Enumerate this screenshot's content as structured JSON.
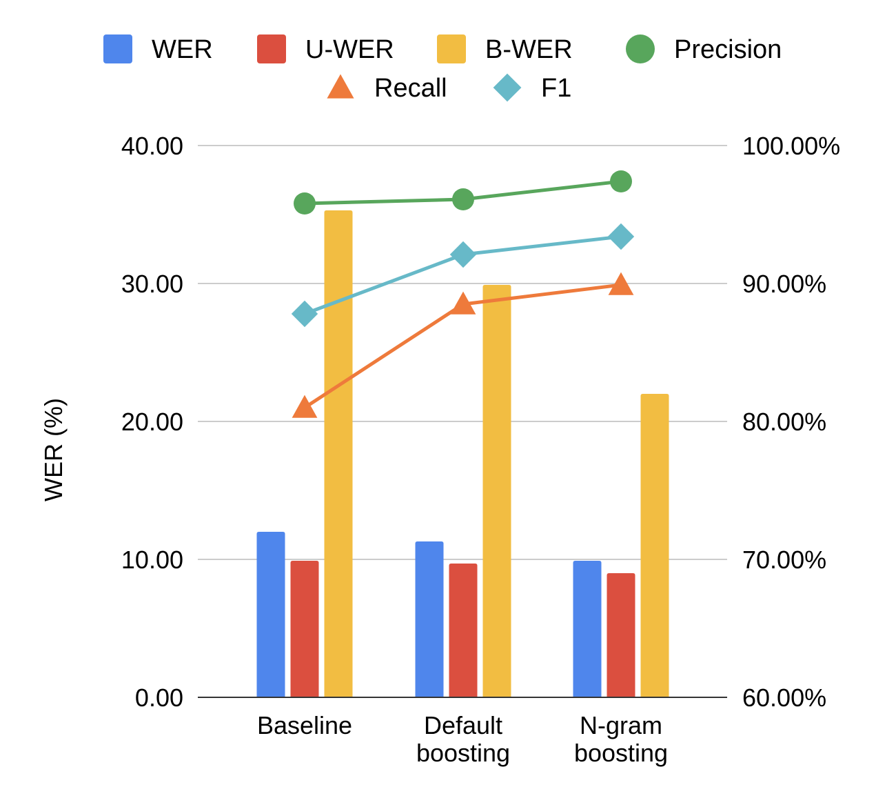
{
  "chart_data": {
    "type": "bar",
    "categories": [
      [
        "Baseline"
      ],
      [
        "Default",
        "boosting"
      ],
      [
        "N-gram",
        "boosting"
      ]
    ],
    "ylabel": "WER (%)",
    "y_left": {
      "ticks": [
        "0.00",
        "10.00",
        "20.00",
        "30.00",
        "40.00"
      ],
      "range": [
        0,
        40
      ]
    },
    "y_right": {
      "ticks": [
        "60.00%",
        "70.00%",
        "80.00%",
        "90.00%",
        "100.00%"
      ],
      "range": [
        60,
        100
      ]
    },
    "grid": true,
    "legend_position": "top",
    "bar_series": [
      {
        "name": "WER",
        "color": "#4f86ec",
        "values": [
          12.0,
          11.3,
          9.9
        ]
      },
      {
        "name": "U-WER",
        "color": "#db4f3f",
        "values": [
          9.9,
          9.7,
          9.0
        ]
      },
      {
        "name": "B-WER",
        "color": "#f2bd42",
        "values": [
          35.3,
          29.9,
          22.0
        ]
      }
    ],
    "line_series": [
      {
        "name": "Precision",
        "color": "#58a65c",
        "marker": "circle",
        "values": [
          95.8,
          96.1,
          97.4
        ]
      },
      {
        "name": "Recall",
        "color": "#ee7a3b",
        "marker": "triangle",
        "values": [
          81.0,
          88.5,
          89.9
        ]
      },
      {
        "name": "F1",
        "color": "#67b9c8",
        "marker": "diamond",
        "values": [
          87.8,
          92.1,
          93.4
        ]
      }
    ]
  }
}
